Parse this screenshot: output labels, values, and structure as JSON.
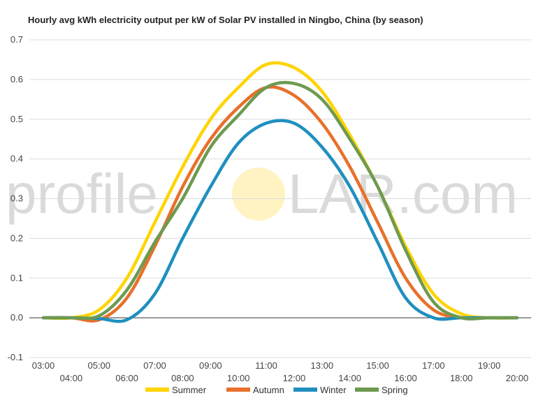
{
  "watermark": {
    "left": "profile",
    "right": "LAR.com",
    "sun_color": "#fff1b8"
  },
  "chart_data": {
    "type": "line",
    "title": "Hourly avg kWh electricity output per kW of Solar PV installed in Ningbo, China (by season)",
    "xlabel": "",
    "ylabel": "",
    "ylim": [
      -0.1,
      0.7
    ],
    "yticks": [
      "-0.1",
      "0.0",
      "0.1",
      "0.2",
      "0.3",
      "0.4",
      "0.5",
      "0.6",
      "0.7"
    ],
    "categories": [
      "03:00",
      "04:00",
      "05:00",
      "06:00",
      "07:00",
      "08:00",
      "09:00",
      "10:00",
      "11:00",
      "12:00",
      "13:00",
      "14:00",
      "15:00",
      "16:00",
      "17:00",
      "18:00",
      "19:00",
      "20:00"
    ],
    "grid": true,
    "legend_position": "bottom",
    "series": [
      {
        "name": "Summer",
        "color": "#ffd400",
        "values": [
          0.0,
          0.0,
          0.02,
          0.1,
          0.24,
          0.38,
          0.5,
          0.58,
          0.638,
          0.63,
          0.57,
          0.46,
          0.33,
          0.18,
          0.06,
          0.01,
          0.0,
          0.0
        ]
      },
      {
        "name": "Autumn",
        "color": "#e8702a",
        "values": [
          0.0,
          0.0,
          -0.005,
          0.05,
          0.18,
          0.33,
          0.45,
          0.53,
          0.58,
          0.56,
          0.49,
          0.38,
          0.24,
          0.1,
          0.02,
          0.0,
          0.0,
          0.0
        ]
      },
      {
        "name": "Winter",
        "color": "#1f8fbf",
        "values": [
          0.0,
          0.0,
          -0.002,
          -0.005,
          0.06,
          0.2,
          0.33,
          0.44,
          0.49,
          0.49,
          0.43,
          0.33,
          0.19,
          0.05,
          0.0,
          0.0,
          0.0,
          0.0
        ]
      },
      {
        "name": "Spring",
        "color": "#6d9a50",
        "values": [
          0.0,
          0.0,
          0.005,
          0.07,
          0.19,
          0.3,
          0.43,
          0.51,
          0.58,
          0.59,
          0.55,
          0.45,
          0.33,
          0.17,
          0.04,
          0.0,
          0.0,
          0.0
        ]
      }
    ]
  }
}
